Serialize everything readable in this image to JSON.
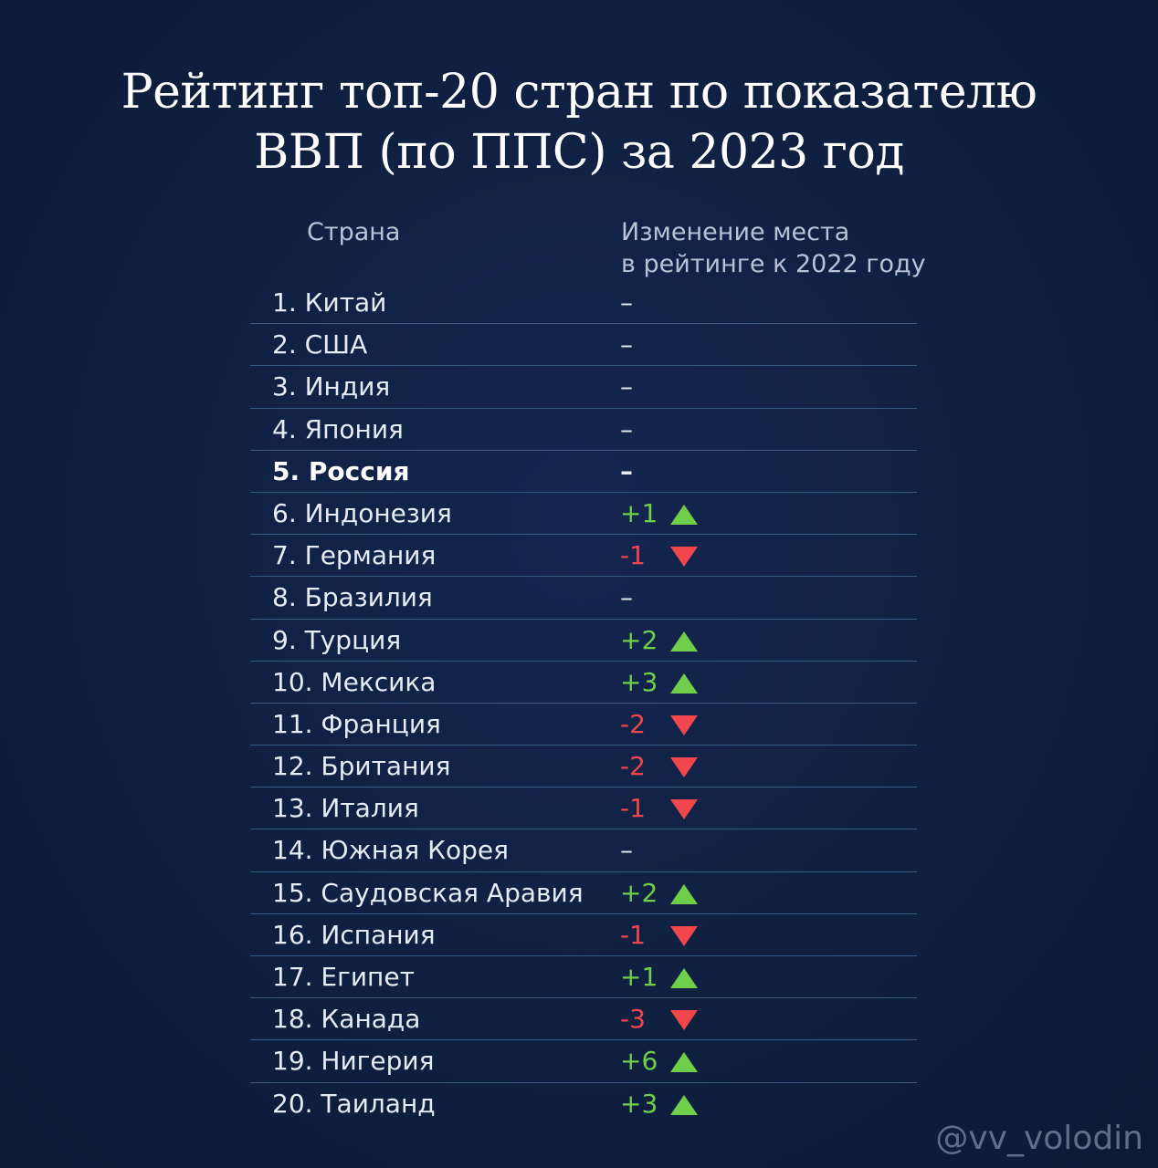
{
  "title": {
    "line1": "Рейтинг топ-20 стран по показателю",
    "line2": "ВВП (по ППС) за 2023 год"
  },
  "headers": {
    "country": "Страна",
    "change_line1": "Изменение места",
    "change_line2": "в рейтинге к 2022 году"
  },
  "colors": {
    "background": "#102040",
    "up": "#6fcf4a",
    "down": "#f0464c",
    "divider": "#3a5a86"
  },
  "rows": [
    {
      "name": "1. Китай",
      "change": "–",
      "trend": "none",
      "bold": false
    },
    {
      "name": "2. США",
      "change": "–",
      "trend": "none",
      "bold": false
    },
    {
      "name": "3. Индия",
      "change": "–",
      "trend": "none",
      "bold": false
    },
    {
      "name": "4. Япония",
      "change": "–",
      "trend": "none",
      "bold": false
    },
    {
      "name": "5. Россия",
      "change": "–",
      "trend": "none",
      "bold": true
    },
    {
      "name": "6. Индонезия",
      "change": "+1",
      "trend": "up",
      "bold": false
    },
    {
      "name": "7. Германия",
      "change": "-1",
      "trend": "down",
      "bold": false
    },
    {
      "name": "8. Бразилия",
      "change": "–",
      "trend": "none",
      "bold": false
    },
    {
      "name": "9. Турция",
      "change": "+2",
      "trend": "up",
      "bold": false
    },
    {
      "name": "10. Мексика",
      "change": "+3",
      "trend": "up",
      "bold": false
    },
    {
      "name": "11. Франция",
      "change": "-2",
      "trend": "down",
      "bold": false
    },
    {
      "name": "12. Британия",
      "change": "-2",
      "trend": "down",
      "bold": false
    },
    {
      "name": "13. Италия",
      "change": "-1",
      "trend": "down",
      "bold": false
    },
    {
      "name": "14. Южная Корея",
      "change": "–",
      "trend": "none",
      "bold": false
    },
    {
      "name": "15. Саудовская Аравия",
      "change": "+2",
      "trend": "up",
      "bold": false
    },
    {
      "name": "16. Испания",
      "change": "-1",
      "trend": "down",
      "bold": false
    },
    {
      "name": "17. Египет",
      "change": "+1",
      "trend": "up",
      "bold": false
    },
    {
      "name": "18. Канада",
      "change": "-3",
      "trend": "down",
      "bold": false
    },
    {
      "name": "19. Нигерия",
      "change": "+6",
      "trend": "up",
      "bold": false
    },
    {
      "name": "20. Таиланд",
      "change": "+3",
      "trend": "up",
      "bold": false
    }
  ],
  "watermark": "@vv_volodin"
}
